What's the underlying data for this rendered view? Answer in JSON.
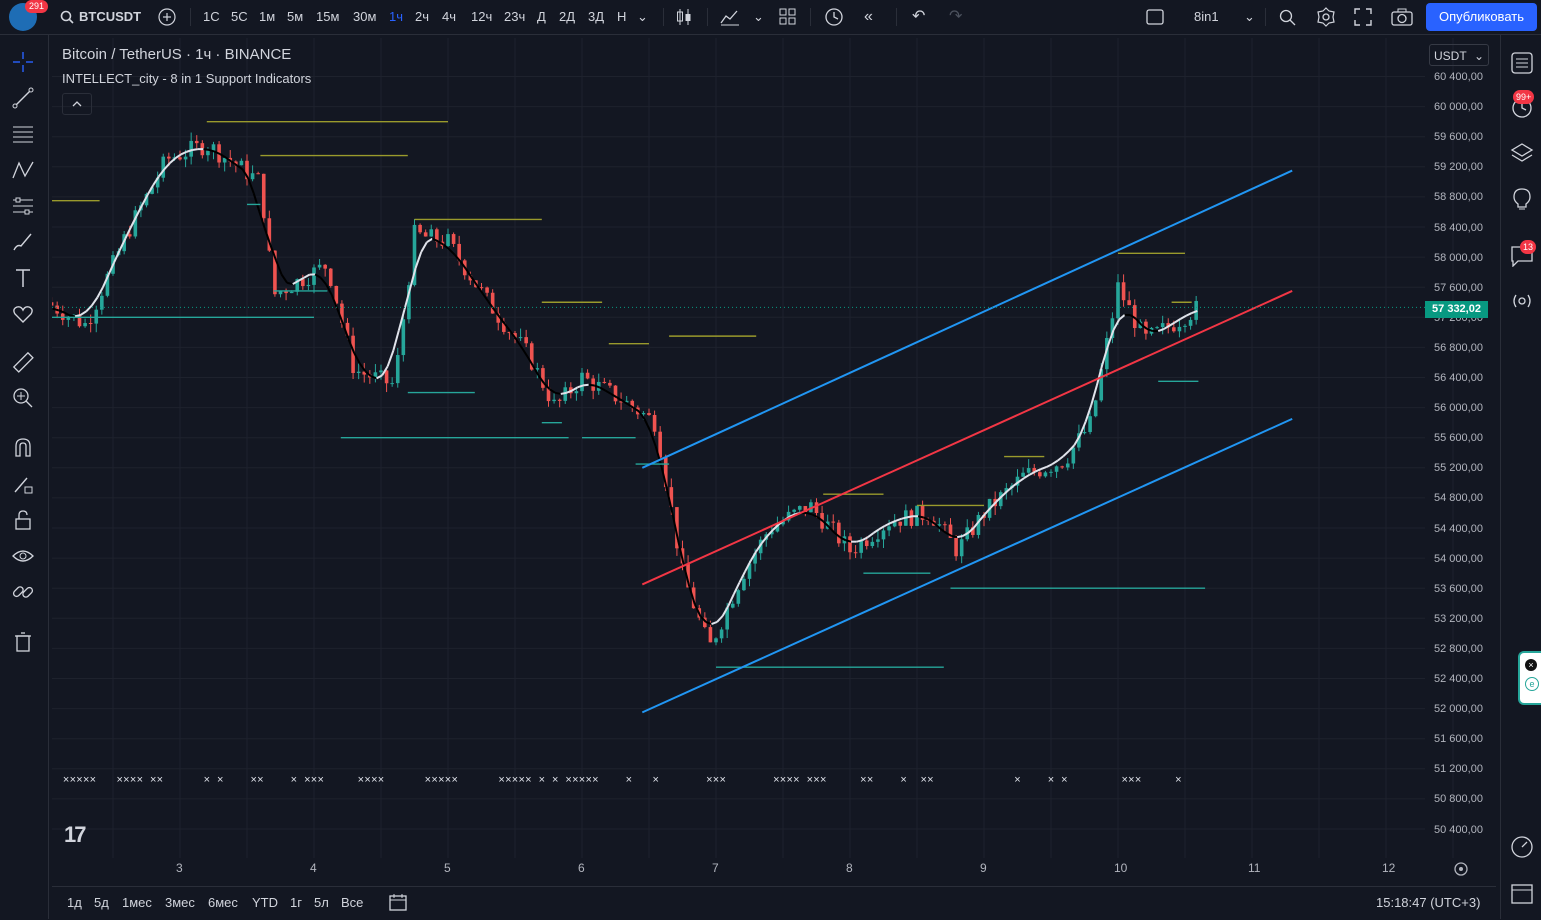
{
  "app": {
    "notifications": "291",
    "symbol": "BTCUSDT",
    "timeframes": [
      "1С",
      "5С",
      "1м",
      "5м",
      "15м",
      "30м",
      "1ч",
      "2ч",
      "4ч",
      "12ч",
      "23ч",
      "Д",
      "2Д",
      "3Д",
      "Н"
    ],
    "active_timeframe": "1ч",
    "layout_name": "8in1",
    "publish_label": "Опубликовать"
  },
  "legend": {
    "title": "Bitcoin / TetherUS · 1ч · BINANCE",
    "indicator": "INTELLECT_city - 8 in 1 Support Indicators"
  },
  "price_scale": {
    "currency": "USDT",
    "labels": [
      "60 400,00",
      "60 000,00",
      "59 600,00",
      "59 200,00",
      "58 800,00",
      "58 400,00",
      "58 000,00",
      "57 600,00",
      "57 200,00",
      "56 800,00",
      "56 400,00",
      "56 000,00",
      "55 600,00",
      "55 200,00",
      "54 800,00",
      "54 400,00",
      "54 000,00",
      "53 600,00",
      "53 200,00",
      "52 800,00",
      "52 400,00",
      "52 000,00",
      "51 600,00",
      "51 200,00",
      "50 800,00",
      "50 400,00"
    ],
    "last_price": "57 332,02"
  },
  "time_axis": {
    "labels": [
      "3",
      "4",
      "5",
      "6",
      "7",
      "8",
      "9",
      "10",
      "11",
      "12"
    ]
  },
  "bottom": {
    "ranges": [
      "1д",
      "5д",
      "1мес",
      "3мес",
      "6мес",
      "YTD",
      "1г",
      "5л",
      "Все"
    ],
    "clock": "15:18:47 (UTC+3)"
  },
  "right_badges": {
    "alerts": "99+",
    "chats": "13"
  },
  "colors": {
    "background": "#131722",
    "up": "#26a69a",
    "down": "#ef5350",
    "channel": "#2196f3",
    "midline": "#f23645",
    "accent": "#2962ff"
  },
  "chart_data": {
    "type": "candlestick",
    "x_unit": "day of month (hourly candles)",
    "ylim": [
      50200,
      60600
    ],
    "close_path": [
      [
        2.0,
        57400
      ],
      [
        2.3,
        57100
      ],
      [
        2.6,
        58300
      ],
      [
        2.9,
        59300
      ],
      [
        3.2,
        59500
      ],
      [
        3.6,
        59000
      ],
      [
        3.7,
        57500
      ],
      [
        3.9,
        57700
      ],
      [
        4.1,
        57900
      ],
      [
        4.3,
        56500
      ],
      [
        4.6,
        56300
      ],
      [
        4.75,
        58300
      ],
      [
        5.0,
        58200
      ],
      [
        5.3,
        57400
      ],
      [
        5.6,
        56700
      ],
      [
        5.8,
        56000
      ],
      [
        6.0,
        56400
      ],
      [
        6.3,
        56100
      ],
      [
        6.55,
        55800
      ],
      [
        6.75,
        53800
      ],
      [
        6.95,
        52800
      ],
      [
        7.2,
        53800
      ],
      [
        7.4,
        54400
      ],
      [
        7.7,
        54700
      ],
      [
        8.0,
        54100
      ],
      [
        8.3,
        54500
      ],
      [
        8.6,
        54600
      ],
      [
        8.8,
        54100
      ],
      [
        9.0,
        54600
      ],
      [
        9.3,
        55100
      ],
      [
        9.6,
        55300
      ],
      [
        9.8,
        55800
      ],
      [
        10.0,
        57600
      ],
      [
        10.2,
        56900
      ],
      [
        10.4,
        57100
      ],
      [
        10.6,
        57332
      ]
    ],
    "channel_upper": [
      [
        6.45,
        55200
      ],
      [
        11.3,
        59150
      ]
    ],
    "channel_mid": [
      [
        6.45,
        53650
      ],
      [
        11.3,
        57550
      ]
    ],
    "channel_lower": [
      [
        6.45,
        51950
      ],
      [
        11.3,
        55850
      ]
    ],
    "last_price": 57332.02
  }
}
